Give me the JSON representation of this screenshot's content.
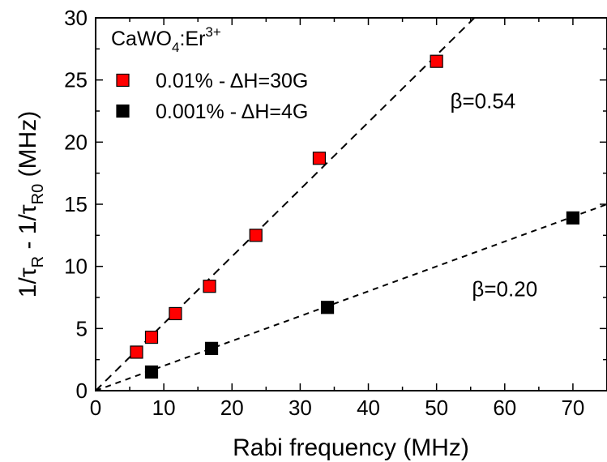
{
  "chart_data": {
    "type": "scatter",
    "xlabel": "Rabi frequency (MHz)",
    "ylabel": {
      "parts": [
        {
          "t": "1/τ"
        },
        {
          "t": "R",
          "sub": true
        },
        {
          "t": " - 1/τ"
        },
        {
          "t": "R0",
          "sub": true
        },
        {
          "t": "  (MHz)"
        }
      ]
    },
    "xlim": [
      0,
      75
    ],
    "ylim": [
      0,
      30
    ],
    "x_ticks": [
      0,
      10,
      20,
      30,
      40,
      50,
      60,
      70
    ],
    "y_ticks": [
      0,
      5,
      10,
      15,
      20,
      25,
      30
    ],
    "legend": {
      "title": {
        "base": "CaWO",
        "sub": "4",
        "mid": ":Er",
        "sup": "3+"
      },
      "placement": "top-left"
    },
    "series": [
      {
        "name": "0.01% - ΔH=30G",
        "color": "#ff0000",
        "marker": "square",
        "x": [
          6,
          8.2,
          11.7,
          16.7,
          23.5,
          32.8,
          50
        ],
        "y": [
          3.1,
          4.3,
          6.2,
          8.4,
          12.5,
          18.7,
          26.5
        ]
      },
      {
        "name": "0.001% - ΔH=4G",
        "color": "#000000",
        "marker": "square",
        "x": [
          8.2,
          17,
          34,
          70
        ],
        "y": [
          1.5,
          3.4,
          6.7,
          13.9
        ]
      }
    ],
    "fit_lines": [
      {
        "x": [
          0,
          56
        ],
        "y": [
          0,
          30.24
        ],
        "style": "long-dash"
      },
      {
        "x": [
          0,
          75
        ],
        "y": [
          0,
          15
        ],
        "style": "short-dash"
      }
    ],
    "annotations": [
      {
        "text": "β=0.54",
        "x": 56.8,
        "y": 23.3
      },
      {
        "text": "β=0.20",
        "x": 60,
        "y": 8.2
      }
    ]
  }
}
